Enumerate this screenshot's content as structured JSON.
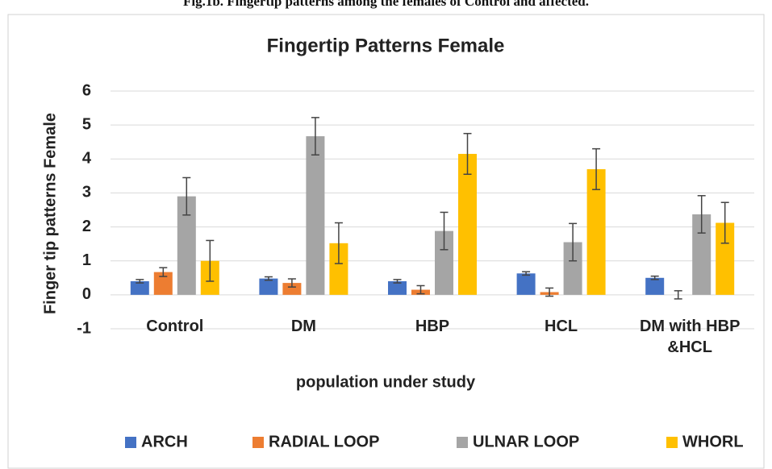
{
  "caption": "Fig.1b. Fingertip patterns among the females of Control and affected.",
  "chart_data": {
    "type": "bar",
    "title": "Fingertip Patterns Female",
    "x_label": "population under study",
    "y_label": "Finger tip patterns Female",
    "categories": [
      "Control",
      "DM",
      "HBP",
      "HCL",
      "DM with HBP &HCL"
    ],
    "series": [
      {
        "name": "ARCH",
        "color": "#4472c4",
        "values": [
          0.4,
          0.48,
          0.4,
          0.63,
          0.5
        ],
        "errors": [
          0.05,
          0.05,
          0.05,
          0.05,
          0.05
        ]
      },
      {
        "name": "RADIAL LOOP",
        "color": "#ed7d31",
        "values": [
          0.67,
          0.35,
          0.15,
          0.08,
          0
        ],
        "errors": [
          0.13,
          0.12,
          0.12,
          0.12,
          0.12
        ]
      },
      {
        "name": "ULNAR LOOP",
        "color": "#a5a5a5",
        "values": [
          2.9,
          4.67,
          1.88,
          1.55,
          2.37
        ],
        "errors": [
          0.55,
          0.55,
          0.55,
          0.55,
          0.55
        ]
      },
      {
        "name": "WHORL",
        "color": "#ffc000",
        "values": [
          1.0,
          1.52,
          4.15,
          3.7,
          2.12
        ],
        "errors": [
          0.6,
          0.6,
          0.6,
          0.6,
          0.6
        ]
      }
    ],
    "ylim": [
      -1,
      6
    ],
    "yticks": [
      -1,
      0,
      1,
      2,
      3,
      4,
      5,
      6
    ],
    "grid": true,
    "legend": "bottom"
  }
}
